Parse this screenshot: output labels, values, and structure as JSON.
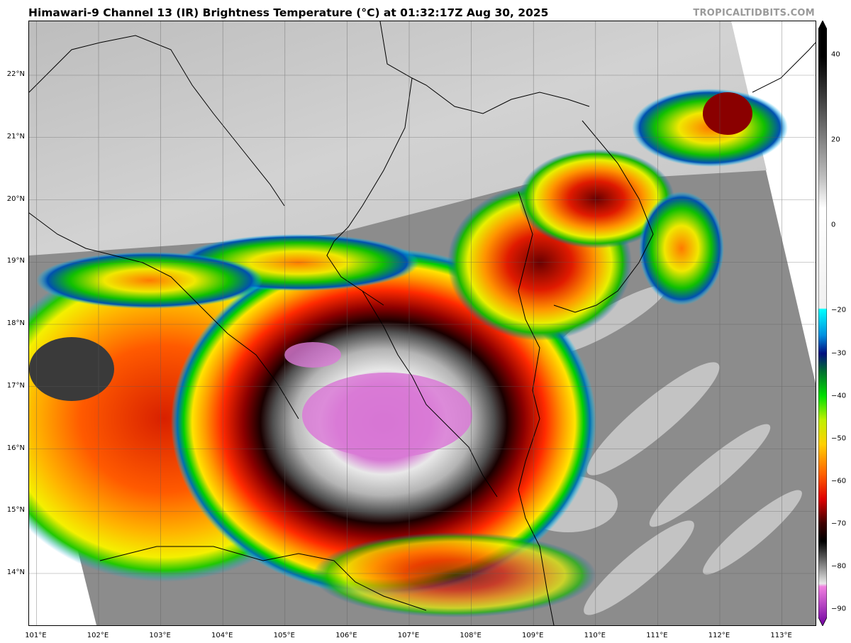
{
  "title": "Himawari-9 Channel 13 (IR) Brightness Temperature (°C) at 01:32:17Z Aug 30, 2025",
  "credit": "TROPICALTIDBITS.COM",
  "map": {
    "lat_labels": [
      {
        "lat": 22,
        "label": "22°N"
      },
      {
        "lat": 21,
        "label": "21°N"
      },
      {
        "lat": 20,
        "label": "20°N"
      },
      {
        "lat": 19,
        "label": "19°N"
      },
      {
        "lat": 18,
        "label": "18°N"
      },
      {
        "lat": 17,
        "label": "17°N"
      },
      {
        "lat": 16,
        "label": "16°N"
      },
      {
        "lat": 15,
        "label": "15°N"
      },
      {
        "lat": 14,
        "label": "14°N"
      }
    ],
    "lon_labels": [
      {
        "lon": 101,
        "label": "101°E"
      },
      {
        "lon": 102,
        "label": "102°E"
      },
      {
        "lon": 103,
        "label": "103°E"
      },
      {
        "lon": 104,
        "label": "104°E"
      },
      {
        "lon": 105,
        "label": "105°E"
      },
      {
        "lon": 106,
        "label": "106°E"
      },
      {
        "lon": 107,
        "label": "107°E"
      },
      {
        "lon": 108,
        "label": "108°E"
      },
      {
        "lon": 109,
        "label": "109°E"
      },
      {
        "lon": 110,
        "label": "110°E"
      },
      {
        "lon": 111,
        "label": "111°E"
      },
      {
        "lon": 112,
        "label": "112°E"
      },
      {
        "lon": 113,
        "label": "113°E"
      }
    ]
  },
  "colorbar": {
    "labels": [
      "40",
      "20",
      "0",
      "−20",
      "−30",
      "−40",
      "−50",
      "−60",
      "−70",
      "−80",
      "−90"
    ],
    "values": [
      40,
      20,
      0,
      -20,
      -30,
      -40,
      -50,
      -60,
      -70,
      -80,
      -90
    ],
    "range": [
      -94,
      48
    ]
  },
  "colors": {
    "land_background": "#c8c8c8",
    "ocean_background": "#8a8a8a",
    "cold_cloud_top": "#d870d0",
    "deep_convection": "#b00000"
  }
}
